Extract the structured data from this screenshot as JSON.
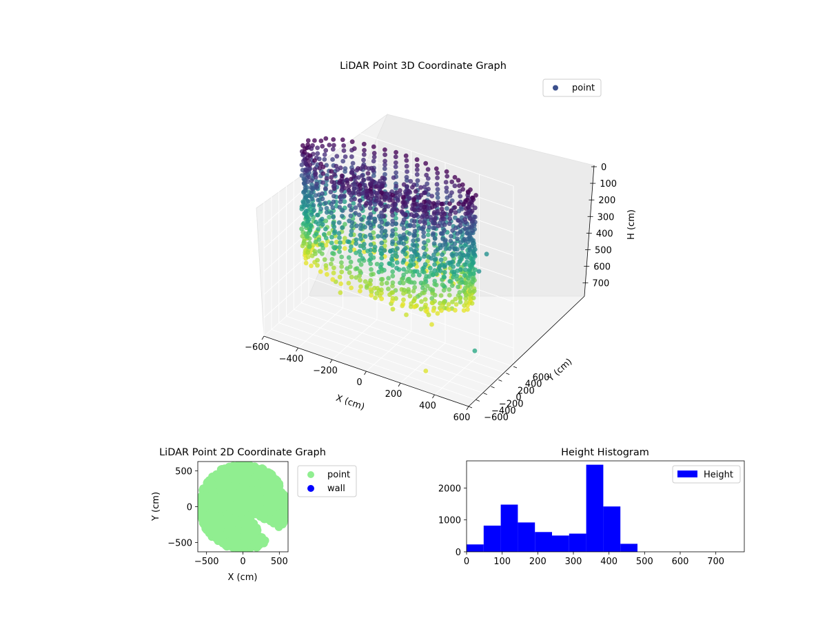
{
  "chart_data": [
    {
      "type": "scatter",
      "title": "LiDAR Point 3D Coordinate Graph",
      "xlabel": "X (cm)",
      "ylabel": "Y (cm)",
      "zlabel": "H (cm)",
      "xlim": [
        -600,
        600
      ],
      "ylim": [
        -600,
        600
      ],
      "zlim": [
        780,
        0
      ],
      "x_ticks": [
        "−600",
        "−400",
        "−200",
        "0",
        "200",
        "400",
        "600"
      ],
      "y_ticks": [
        "−600",
        "−400",
        "−200",
        "0",
        "200",
        "400",
        "600"
      ],
      "z_ticks": [
        "0",
        "100",
        "200",
        "300",
        "400",
        "500",
        "600",
        "700"
      ],
      "legend": {
        "position": "top-right",
        "entries": [
          {
            "label": "point",
            "color": "#3b4f8c"
          }
        ]
      },
      "colormap": "viridis",
      "grid": true,
      "series": [
        {
          "name": "point",
          "shape": "ring of points around the scanner, radius about 500 cm, heights about 0–500 cm, plus a dense dark cluster near the centre at low H and scattered outliers"
        }
      ]
    },
    {
      "type": "scatter",
      "title": "LiDAR Point 2D Coordinate Graph",
      "xlabel": "X (cm)",
      "ylabel": "Y (cm)",
      "xlim": [
        -620,
        620
      ],
      "ylim": [
        -630,
        630
      ],
      "x_ticks": [
        "−500",
        "0",
        "500"
      ],
      "y_ticks": [
        "−500",
        "0",
        "500"
      ],
      "legend": {
        "position": "outside-right",
        "entries": [
          {
            "label": "point",
            "color": "#90ee90"
          },
          {
            "label": "wall",
            "color": "#0000ff"
          }
        ]
      },
      "series": [
        {
          "name": "point",
          "color": "#90ee90",
          "shape": "filled disc of radius about 600 cm with a wedge-shaped gap at the lower right"
        },
        {
          "name": "wall",
          "color": "#0000ff",
          "values": []
        }
      ]
    },
    {
      "type": "bar",
      "title": "Height Histogram",
      "xlabel": "",
      "ylabel": "",
      "xlim": [
        0,
        780
      ],
      "ylim": [
        0,
        2850
      ],
      "x_ticks": [
        "0",
        "100",
        "200",
        "300",
        "400",
        "500",
        "600",
        "700"
      ],
      "y_ticks": [
        "0",
        "1000",
        "2000"
      ],
      "legend": {
        "position": "top-right",
        "entries": [
          {
            "label": "Height",
            "color": "#0000ff"
          }
        ]
      },
      "color": "#0000ff",
      "bins": [
        {
          "start": 0,
          "end": 48,
          "count": 230
        },
        {
          "start": 48,
          "end": 96,
          "count": 820
        },
        {
          "start": 96,
          "end": 144,
          "count": 1480
        },
        {
          "start": 144,
          "end": 192,
          "count": 920
        },
        {
          "start": 192,
          "end": 240,
          "count": 620
        },
        {
          "start": 240,
          "end": 288,
          "count": 510
        },
        {
          "start": 288,
          "end": 336,
          "count": 570
        },
        {
          "start": 336,
          "end": 384,
          "count": 2730
        },
        {
          "start": 384,
          "end": 432,
          "count": 1420
        },
        {
          "start": 432,
          "end": 480,
          "count": 250
        }
      ]
    }
  ]
}
